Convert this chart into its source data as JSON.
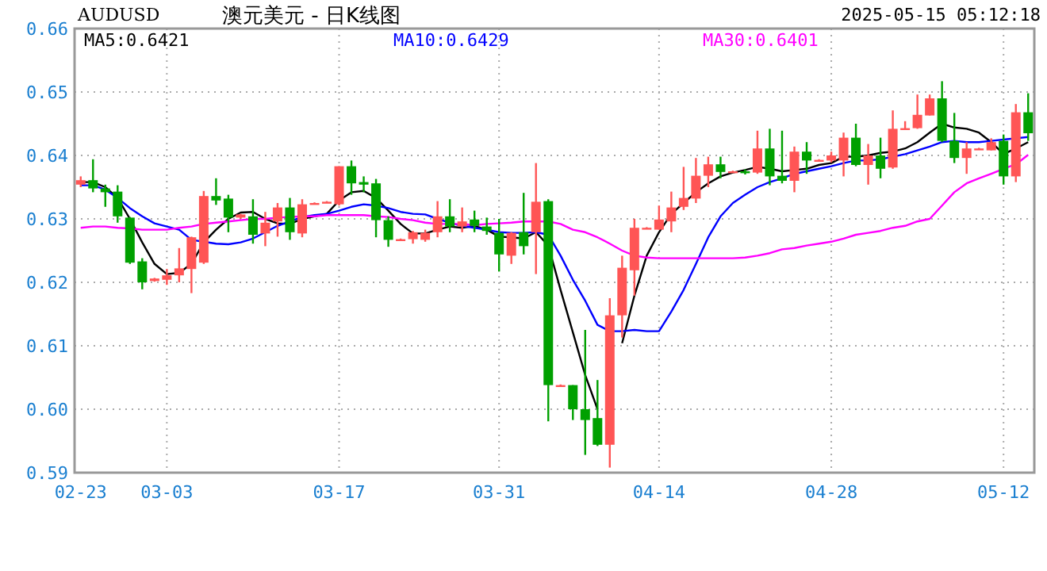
{
  "chart_data": {
    "type": "candlestick",
    "title": "澳元美元 - 日K线图",
    "subtitle": "AUDUSD",
    "annotations": [
      "2025-05-15 05:12:18"
    ],
    "categories": [
      "02-23",
      null,
      null,
      null,
      null,
      null,
      null,
      "03-03",
      null,
      null,
      null,
      null,
      null,
      null,
      null,
      null,
      null,
      null,
      null,
      null,
      null,
      "03-17",
      null,
      null,
      null,
      null,
      null,
      null,
      null,
      null,
      null,
      null,
      null,
      null,
      "03-31",
      null,
      null,
      null,
      null,
      null,
      null,
      null,
      null,
      null,
      null,
      null,
      null,
      "04-14",
      null,
      null,
      null,
      null,
      null,
      null,
      null,
      null,
      null,
      null,
      null,
      null,
      null,
      "04-28",
      null,
      null,
      null,
      null,
      null,
      null,
      null,
      null,
      null,
      null,
      null,
      null,
      null,
      "05-12",
      null,
      null
    ],
    "ohlc": [
      [
        0.6354,
        0.6367,
        0.635,
        0.6361
      ],
      [
        0.6361,
        0.6394,
        0.6342,
        0.6348
      ],
      [
        0.6348,
        0.6354,
        0.6319,
        0.6342
      ],
      [
        0.6343,
        0.6353,
        0.6294,
        0.6304
      ],
      [
        0.6302,
        0.6303,
        0.6229,
        0.6231
      ],
      [
        0.6233,
        0.6238,
        0.6189,
        0.62
      ],
      [
        0.6202,
        0.6207,
        0.6201,
        0.6206
      ],
      [
        0.6204,
        0.6221,
        0.6196,
        0.6211
      ],
      [
        0.6211,
        0.6254,
        0.62,
        0.6222
      ],
      [
        0.6221,
        0.6272,
        0.6183,
        0.6271
      ],
      [
        0.6231,
        0.6344,
        0.6229,
        0.6336
      ],
      [
        0.6336,
        0.6364,
        0.6322,
        0.6329
      ],
      [
        0.6332,
        0.6338,
        0.6279,
        0.6302
      ],
      [
        0.6302,
        0.6308,
        0.63,
        0.6307
      ],
      [
        0.6304,
        0.6331,
        0.6261,
        0.6275
      ],
      [
        0.6277,
        0.6311,
        0.6257,
        0.6294
      ],
      [
        0.6296,
        0.6325,
        0.6272,
        0.6318
      ],
      [
        0.6318,
        0.6333,
        0.6267,
        0.6279
      ],
      [
        0.6277,
        0.6331,
        0.6271,
        0.6323
      ],
      [
        0.6324,
        0.6326,
        0.6323,
        0.6325
      ],
      [
        0.6326,
        0.6328,
        0.6325,
        0.6327
      ],
      [
        0.6323,
        0.6383,
        0.6321,
        0.6383
      ],
      [
        0.6383,
        0.6392,
        0.6338,
        0.6356
      ],
      [
        0.6358,
        0.6367,
        0.6342,
        0.6354
      ],
      [
        0.6356,
        0.6363,
        0.6271,
        0.6298
      ],
      [
        0.6298,
        0.6304,
        0.6256,
        0.6267
      ],
      [
        0.6267,
        0.6269,
        0.6266,
        0.6268
      ],
      [
        0.6268,
        0.6281,
        0.6261,
        0.6279
      ],
      [
        0.6267,
        0.6283,
        0.6264,
        0.6278
      ],
      [
        0.6279,
        0.6328,
        0.6271,
        0.6304
      ],
      [
        0.6304,
        0.6331,
        0.6279,
        0.6288
      ],
      [
        0.6288,
        0.6318,
        0.6279,
        0.6296
      ],
      [
        0.6299,
        0.6313,
        0.6279,
        0.6289
      ],
      [
        0.6288,
        0.6302,
        0.6275,
        0.6281
      ],
      [
        0.6278,
        0.63,
        0.6217,
        0.6244
      ],
      [
        0.6242,
        0.6279,
        0.6229,
        0.6278
      ],
      [
        0.6279,
        0.6341,
        0.6244,
        0.6257
      ],
      [
        0.6279,
        0.6388,
        0.6213,
        0.6327
      ],
      [
        0.6328,
        0.6331,
        0.5981,
        0.6038
      ],
      [
        0.6037,
        0.6039,
        0.6036,
        0.6038
      ],
      [
        0.6038,
        0.6038,
        0.5983,
        0.6
      ],
      [
        0.6,
        0.6125,
        0.5928,
        0.5983
      ],
      [
        0.5986,
        0.6046,
        0.5942,
        0.5944
      ],
      [
        0.5944,
        0.6175,
        0.5908,
        0.6148
      ],
      [
        0.6148,
        0.6242,
        0.6113,
        0.6223
      ],
      [
        0.6219,
        0.63,
        0.6179,
        0.6286
      ],
      [
        0.6285,
        0.6287,
        0.6284,
        0.6286
      ],
      [
        0.6283,
        0.6321,
        0.6283,
        0.6299
      ],
      [
        0.6296,
        0.6343,
        0.6279,
        0.6318
      ],
      [
        0.6319,
        0.6382,
        0.6314,
        0.6333
      ],
      [
        0.6332,
        0.6396,
        0.6325,
        0.6368
      ],
      [
        0.6368,
        0.6398,
        0.635,
        0.6386
      ],
      [
        0.6386,
        0.6398,
        0.6364,
        0.6374
      ],
      [
        0.6374,
        0.6376,
        0.6373,
        0.6375
      ],
      [
        0.6375,
        0.6378,
        0.637,
        0.6374
      ],
      [
        0.6373,
        0.6439,
        0.6371,
        0.6411
      ],
      [
        0.6411,
        0.6442,
        0.6353,
        0.6367
      ],
      [
        0.6368,
        0.6439,
        0.6356,
        0.636
      ],
      [
        0.636,
        0.6414,
        0.6342,
        0.6406
      ],
      [
        0.6406,
        0.6421,
        0.6371,
        0.6392
      ],
      [
        0.6392,
        0.6394,
        0.6391,
        0.6393
      ],
      [
        0.6392,
        0.6406,
        0.6389,
        0.64
      ],
      [
        0.6392,
        0.6436,
        0.6367,
        0.6428
      ],
      [
        0.6428,
        0.645,
        0.6383,
        0.6385
      ],
      [
        0.6385,
        0.6418,
        0.6354,
        0.64
      ],
      [
        0.64,
        0.6428,
        0.6364,
        0.6379
      ],
      [
        0.6381,
        0.6471,
        0.6379,
        0.6442
      ],
      [
        0.6442,
        0.6454,
        0.6441,
        0.6443
      ],
      [
        0.6443,
        0.6496,
        0.6442,
        0.6464
      ],
      [
        0.6463,
        0.6496,
        0.6463,
        0.649
      ],
      [
        0.649,
        0.6517,
        0.6421,
        0.6423
      ],
      [
        0.6423,
        0.6467,
        0.6388,
        0.6396
      ],
      [
        0.6396,
        0.6421,
        0.6371,
        0.6411
      ],
      [
        0.641,
        0.6412,
        0.6409,
        0.6411
      ],
      [
        0.6408,
        0.6427,
        0.6408,
        0.6421
      ],
      [
        0.6423,
        0.6433,
        0.6354,
        0.6367
      ],
      [
        0.6367,
        0.6481,
        0.6358,
        0.6468
      ],
      [
        0.6468,
        0.6498,
        0.6423,
        0.6435
      ]
    ],
    "series": [
      {
        "name": "MA5:0.6421",
        "type": "line",
        "color": "#000000",
        "values": [
          0.6358,
          0.6358,
          0.635,
          0.6333,
          0.63,
          0.6263,
          0.6229,
          0.6213,
          0.6215,
          0.6229,
          0.6263,
          0.6283,
          0.63,
          0.631,
          0.6311,
          0.63,
          0.6293,
          0.6292,
          0.63,
          0.6304,
          0.6308,
          0.6329,
          0.6342,
          0.6344,
          0.6333,
          0.6313,
          0.6292,
          0.6277,
          0.6277,
          0.6283,
          0.6288,
          0.6286,
          0.6289,
          0.6283,
          0.6272,
          0.6271,
          0.6269,
          0.6279,
          0.6258,
          0.6188,
          0.6121,
          0.6054,
          0.6,
          null,
          0.6104,
          0.6179,
          0.6242,
          0.6279,
          0.6308,
          0.6325,
          0.6342,
          0.6356,
          0.6367,
          0.6373,
          0.6377,
          0.6382,
          0.6379,
          0.6375,
          0.6377,
          0.6379,
          0.6385,
          0.6388,
          0.6398,
          0.6398,
          0.64,
          0.6404,
          0.6406,
          0.6411,
          0.6421,
          0.6436,
          0.645,
          0.6444,
          0.6442,
          0.6436,
          0.6421,
          0.6402,
          0.6411,
          0.6421
        ]
      },
      {
        "name": "MA10:0.6429",
        "type": "line",
        "color": "#0000ff",
        "values": [
          0.6353,
          0.6353,
          0.6346,
          0.6333,
          0.6317,
          0.6304,
          0.6293,
          0.6288,
          0.6283,
          0.6267,
          0.6264,
          0.6261,
          0.626,
          0.6263,
          0.6269,
          0.6279,
          0.6289,
          0.6296,
          0.6303,
          0.6306,
          0.6308,
          0.6313,
          0.6319,
          0.6323,
          0.6321,
          0.6317,
          0.6311,
          0.6308,
          0.6307,
          0.63,
          0.6294,
          0.6289,
          0.6286,
          0.6283,
          0.6279,
          0.6278,
          0.6278,
          0.6279,
          0.6275,
          0.6242,
          0.6204,
          0.6171,
          0.6133,
          0.6123,
          0.6123,
          0.6125,
          0.6123,
          0.6123,
          0.6154,
          0.6188,
          0.6229,
          0.6271,
          0.6304,
          0.6325,
          0.6338,
          0.635,
          0.6358,
          0.6364,
          0.6371,
          0.6375,
          0.6379,
          0.6383,
          0.6388,
          0.6392,
          0.6392,
          0.6394,
          0.6398,
          0.6402,
          0.6408,
          0.6414,
          0.6421,
          0.6423,
          0.6421,
          0.6421,
          0.6423,
          0.6425,
          0.6427,
          0.6429
        ]
      },
      {
        "name": "MA30:0.6401",
        "type": "line",
        "color": "#ff00ff",
        "values": [
          0.6286,
          0.6288,
          0.6288,
          0.6286,
          0.6285,
          0.6283,
          0.6283,
          0.6283,
          0.6286,
          0.6288,
          0.6292,
          0.6294,
          0.6296,
          0.6298,
          0.63,
          0.63,
          0.6302,
          0.6303,
          0.6304,
          0.6304,
          0.6306,
          0.6306,
          0.6306,
          0.6306,
          0.6304,
          0.6303,
          0.63,
          0.6298,
          0.6294,
          0.6292,
          0.6292,
          0.6292,
          0.629,
          0.6292,
          0.6293,
          0.6294,
          0.6296,
          0.6296,
          0.6296,
          0.6292,
          0.6283,
          0.6279,
          0.6271,
          0.6261,
          0.625,
          0.6242,
          0.6239,
          0.6238,
          0.6238,
          0.6238,
          0.6238,
          0.6238,
          0.6238,
          0.6238,
          0.6239,
          0.6242,
          0.6246,
          0.6252,
          0.6254,
          0.6258,
          0.6261,
          0.6264,
          0.6269,
          0.6275,
          0.6278,
          0.6281,
          0.6286,
          0.6289,
          0.6296,
          0.63,
          0.6321,
          0.6342,
          0.6356,
          0.6364,
          0.6371,
          0.6379,
          0.6386,
          0.6401
        ]
      }
    ],
    "ylim": [
      0.59,
      0.66
    ],
    "yticks": [
      0.59,
      {
        "value": 0.6,
        "label": "0.60"
      },
      0.61,
      0.62,
      0.63,
      0.64,
      0.65,
      {
        "value": 0.66,
        "label": "0.66"
      }
    ],
    "grid": true,
    "legend": "top left"
  }
}
